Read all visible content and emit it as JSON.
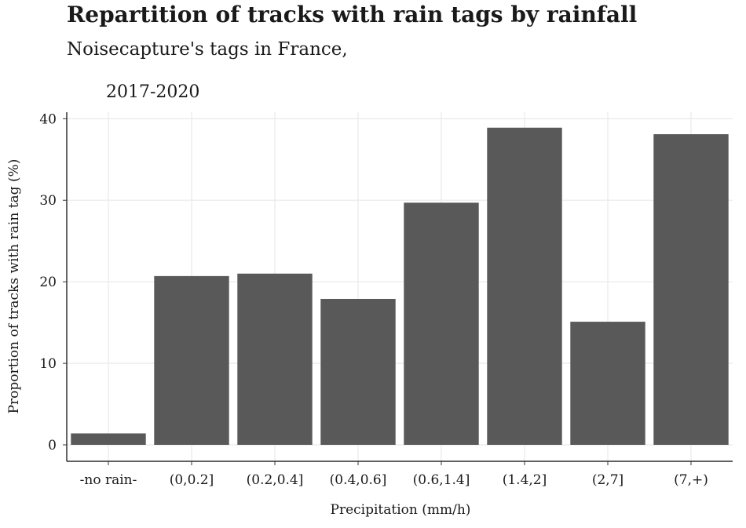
{
  "chart_data": {
    "type": "bar",
    "title": "Repartition of tracks with rain tags by rainfall",
    "subtitle": "Noisecapture's tags in France,",
    "subtitle_line2": "2017-2020",
    "xlabel": "Precipitation (mm/h)",
    "ylabel": "Proportion of tracks with rain tag (%)",
    "categories": [
      "-no rain-",
      "(0,0.2]",
      "(0.2,0.4]",
      "(0.4,0.6]",
      "(0.6,1.4]",
      "(1.4,2]",
      "(2,7]",
      "(7,+)"
    ],
    "values": [
      1.4,
      20.7,
      21.0,
      17.9,
      29.7,
      38.9,
      15.1,
      38.1
    ],
    "ylim": [
      0,
      40.8
    ],
    "yticks": [
      0,
      10,
      20,
      30,
      40
    ],
    "grid": true,
    "bar_color": "#595959",
    "grid_color": "#ebebeb"
  }
}
